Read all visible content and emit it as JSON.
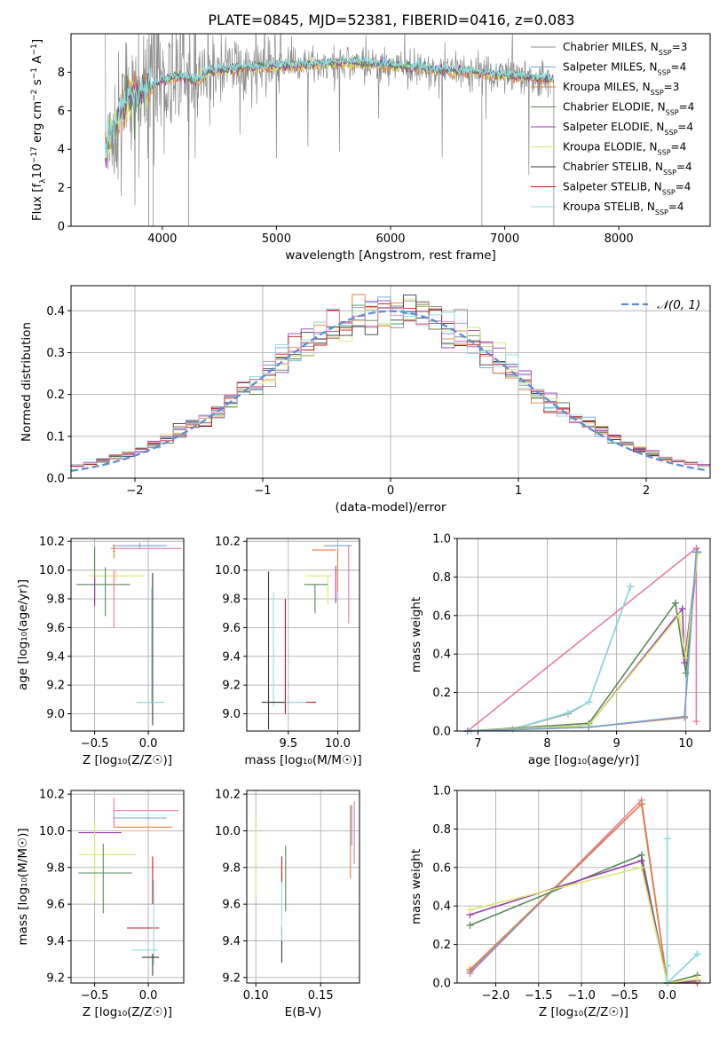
{
  "figure_title": "PLATE=0845, MJD=52381, FIBERID=0416, z=0.083",
  "colors": {
    "chabrier_miles": "#8c8c8c",
    "salpeter_miles": "#6fa3d8",
    "kroupa_miles": "#e8803a",
    "chabrier_elodie": "#5a8a5a",
    "salpeter_elodie": "#9a3fb0",
    "kroupa_elodie": "#dde870",
    "chabrier_stelib": "#3a3a3a",
    "salpeter_stelib": "#c41c1c",
    "kroupa_stelib": "#8edde0",
    "pink": "#e87aa8",
    "normal_curve": "#5b8ed8"
  },
  "models": [
    {
      "key": "chabrier_miles",
      "label": "Chabrier MILES, N",
      "sub": "SSP",
      "suffix": "=3"
    },
    {
      "key": "salpeter_miles",
      "label": "Salpeter MILES, N",
      "sub": "SSP",
      "suffix": "=4"
    },
    {
      "key": "kroupa_miles",
      "label": "Kroupa MILES, N",
      "sub": "SSP",
      "suffix": "=3"
    },
    {
      "key": "chabrier_elodie",
      "label": "Chabrier ELODIE, N",
      "sub": "SSP",
      "suffix": "=4"
    },
    {
      "key": "salpeter_elodie",
      "label": "Salpeter ELODIE, N",
      "sub": "SSP",
      "suffix": "=4"
    },
    {
      "key": "kroupa_elodie",
      "label": "Kroupa ELODIE, N",
      "sub": "SSP",
      "suffix": "=4"
    },
    {
      "key": "chabrier_stelib",
      "label": "Chabrier STELIB, N",
      "sub": "SSP",
      "suffix": "=4"
    },
    {
      "key": "salpeter_stelib",
      "label": "Salpeter STELIB, N",
      "sub": "SSP",
      "suffix": "=4"
    },
    {
      "key": "kroupa_stelib",
      "label": "Kroupa STELIB, N",
      "sub": "SSP",
      "suffix": "=4"
    }
  ],
  "chart_data": [
    {
      "id": "spectrum",
      "type": "line",
      "xlabel": "wavelength [Angstrom, rest frame]",
      "ylabel_parts": [
        "Flux [f",
        "λ",
        "10",
        "−17",
        " erg cm",
        "−2",
        " s",
        "−1",
        " A",
        "−1",
        "]"
      ],
      "xlim": [
        3200,
        8800
      ],
      "ylim": [
        0,
        10
      ],
      "xticks": [
        4000,
        5000,
        6000,
        7000,
        8000
      ],
      "yticks": [
        0,
        2,
        4,
        6,
        8
      ],
      "legend_position": "right",
      "model_curve": {
        "x": [
          3500,
          3600,
          3700,
          3800,
          3850,
          3900,
          4000,
          4100,
          4200,
          4300,
          4400,
          4500,
          4700,
          4900,
          5100,
          5300,
          5500,
          5700,
          5900,
          6100,
          6300,
          6500,
          6700,
          6900,
          7100,
          7300,
          7400
        ],
        "y": [
          4.0,
          5.3,
          6.6,
          6.9,
          7.0,
          7.2,
          7.6,
          7.7,
          7.8,
          7.5,
          8.0,
          8.1,
          8.2,
          8.3,
          8.3,
          8.4,
          8.5,
          8.5,
          8.4,
          8.3,
          8.2,
          8.1,
          8.0,
          7.9,
          7.8,
          7.7,
          7.6
        ]
      },
      "dips": [
        [
          3880,
          0
        ],
        [
          3920,
          0
        ],
        [
          4230,
          0
        ],
        [
          6800,
          0
        ],
        [
          7430,
          0
        ]
      ],
      "grid": false
    },
    {
      "id": "residual_hist",
      "type": "histogram",
      "xlabel": "(data-model)/error",
      "ylabel": "Normed distribution",
      "xlim": [
        -2.5,
        2.5
      ],
      "ylim": [
        0,
        0.46
      ],
      "xticks": [
        -2,
        -1,
        0,
        1,
        2
      ],
      "xtick_labels": [
        "−2",
        "−1",
        "0",
        "1",
        "2"
      ],
      "yticks": [
        0.0,
        0.1,
        0.2,
        0.3,
        0.4
      ],
      "ytick_labels": [
        "0.0",
        "0.1",
        "0.2",
        "0.3",
        "0.4"
      ],
      "bin_width": 0.1,
      "normal_label": "𝒩(0, 1)",
      "legend_position": "top-right",
      "grid": true
    },
    {
      "id": "age_vs_Z",
      "type": "errorbar",
      "xlabel": "Z [log₁₀(Z/Z☉)]",
      "ylabel": "age  [log₁₀(age/yr)]",
      "xlim": [
        -0.72,
        0.33
      ],
      "ylim": [
        8.88,
        10.22
      ],
      "xticks": [
        -0.5,
        0.0
      ],
      "xtick_labels": [
        "−0.5",
        "0.0"
      ],
      "yticks": [
        9.0,
        9.2,
        9.4,
        9.6,
        9.8,
        10.0,
        10.2
      ],
      "ytick_labels": [
        "9.0",
        "9.2",
        "9.4",
        "9.6",
        "9.8",
        "10.0",
        "10.2"
      ],
      "points": [
        {
          "c": "salpeter_miles",
          "x": -0.08,
          "xerr": 0.25,
          "y": 10.17,
          "yerr": 0.02
        },
        {
          "c": "pink",
          "x": -0.02,
          "xerr": 0.33,
          "y": 10.15,
          "yerr": 0.0
        },
        {
          "c": "kroupa_miles",
          "x": -0.32,
          "xerr": 0.01,
          "y": 10.13,
          "yerr": 0.05
        },
        {
          "c": "kroupa_elodie",
          "x": -0.3,
          "xerr": 0.26,
          "y": 9.96,
          "yerr": 0.04
        },
        {
          "c": "chabrier_elodie",
          "x": -0.5,
          "xerr": 0.0,
          "y": 9.96,
          "yerr": 0.2
        },
        {
          "c": "salpeter_elodie",
          "x": -0.5,
          "xerr": 0.0,
          "y": 9.85,
          "yerr": 0.1
        },
        {
          "c": "chabrier_elodie",
          "x": -0.42,
          "xerr": 0.25,
          "y": 9.9,
          "yerr": 0.0
        },
        {
          "c": "chabrier_elodie",
          "x": -0.4,
          "xerr": 0.0,
          "y": 9.85,
          "yerr": 0.17
        },
        {
          "c": "pink",
          "x": -0.32,
          "xerr": 0.0,
          "y": 9.8,
          "yerr": 0.2
        },
        {
          "c": "chabrier_stelib",
          "x": 0.04,
          "xerr": 0.0,
          "y": 9.45,
          "yerr": 0.53
        },
        {
          "c": "kroupa_stelib",
          "x": 0.03,
          "xerr": 0.0,
          "y": 9.47,
          "yerr": 0.4
        },
        {
          "c": "chabrier_elodie",
          "x": 0.02,
          "xerr": 0.12,
          "y": 9.08,
          "yerr": 0.0
        },
        {
          "c": "kroupa_stelib",
          "x": 0.02,
          "xerr": 0.13,
          "y": 9.08,
          "yerr": 0.0
        }
      ],
      "grid": true
    },
    {
      "id": "age_vs_mass",
      "type": "errorbar",
      "xlabel": "mass [log₁₀(M/M☉)]",
      "ylabel": "",
      "xlim": [
        9.08,
        10.22
      ],
      "ylim": [
        8.88,
        10.22
      ],
      "xticks": [
        9.5,
        10.0
      ],
      "xtick_labels": [
        "9.5",
        "10.0"
      ],
      "yticks": [
        9.0,
        9.2,
        9.4,
        9.6,
        9.8,
        10.0,
        10.2
      ],
      "ytick_labels": [
        "9.0",
        "9.2",
        "9.4",
        "9.6",
        "9.8",
        "10.0",
        "10.2"
      ],
      "points": [
        {
          "c": "salpeter_miles",
          "x": 10.0,
          "xerr": 0.14,
          "y": 10.17,
          "yerr": 0.0
        },
        {
          "c": "pink",
          "x": 10.11,
          "xerr": 0.0,
          "y": 9.9,
          "yerr": 0.27
        },
        {
          "c": "kroupa_miles",
          "x": 9.86,
          "xerr": 0.12,
          "y": 10.14,
          "yerr": 0.0
        },
        {
          "c": "kroupa_miles",
          "x": 10.0,
          "xerr": 0.0,
          "y": 10.0,
          "yerr": 0.15
        },
        {
          "c": "kroupa_elodie",
          "x": 9.81,
          "xerr": 0.13,
          "y": 9.96,
          "yerr": 0.0
        },
        {
          "c": "kroupa_elodie",
          "x": 9.9,
          "xerr": 0.0,
          "y": 9.86,
          "yerr": 0.1
        },
        {
          "c": "chabrier_elodie",
          "x": 9.78,
          "xerr": 0.12,
          "y": 9.9,
          "yerr": 0.0
        },
        {
          "c": "chabrier_elodie",
          "x": 9.77,
          "xerr": 0.0,
          "y": 9.8,
          "yerr": 0.1
        },
        {
          "c": "salpeter_elodie",
          "x": 9.98,
          "xerr": 0.0,
          "y": 9.9,
          "yerr": 0.13
        },
        {
          "c": "chabrier_stelib",
          "x": 9.3,
          "xerr": 0.0,
          "y": 9.44,
          "yerr": 0.55
        },
        {
          "c": "kroupa_stelib",
          "x": 9.35,
          "xerr": 0.0,
          "y": 9.45,
          "yerr": 0.4
        },
        {
          "c": "salpeter_stelib",
          "x": 9.47,
          "xerr": 0.0,
          "y": 9.4,
          "yerr": 0.4
        },
        {
          "c": "salpeter_stelib",
          "x": 9.6,
          "xerr": 0.18,
          "y": 9.08,
          "yerr": 0.0
        },
        {
          "c": "kroupa_stelib",
          "x": 9.48,
          "xerr": 0.2,
          "y": 9.08,
          "yerr": 0.0
        },
        {
          "c": "chabrier_stelib",
          "x": 9.35,
          "xerr": 0.12,
          "y": 9.08,
          "yerr": 0.0
        }
      ],
      "grid": true
    },
    {
      "id": "mass_weight_vs_age",
      "type": "line",
      "xlabel": "age  [log₁₀(age/yr)]",
      "ylabel": "mass weight",
      "xlim": [
        6.7,
        10.35
      ],
      "ylim": [
        0,
        1.0
      ],
      "xticks": [
        7,
        8,
        9,
        10
      ],
      "xtick_labels": [
        "7",
        "8",
        "9",
        "10"
      ],
      "yticks": [
        0.0,
        0.2,
        0.4,
        0.6,
        0.8,
        1.0
      ],
      "ytick_labels": [
        "0.0",
        "0.2",
        "0.4",
        "0.6",
        "0.8",
        "1.0"
      ],
      "series": [
        {
          "c": "pink",
          "x": [
            6.85,
            10.15,
            10.15
          ],
          "y": [
            0.0,
            0.95,
            0.05
          ]
        },
        {
          "c": "chabrier_miles",
          "x": [
            6.9,
            7.5,
            8.3,
            8.6,
            9.2
          ],
          "y": [
            0.0,
            0.01,
            0.09,
            0.15,
            0.75
          ]
        },
        {
          "c": "kroupa_stelib",
          "x": [
            6.9,
            7.5,
            8.3,
            8.6,
            9.2
          ],
          "y": [
            0.0,
            0.01,
            0.095,
            0.15,
            0.75
          ]
        },
        {
          "c": "chabrier_elodie",
          "x": [
            6.85,
            8.6,
            9.85,
            10.0,
            10.17
          ],
          "y": [
            0.0,
            0.04,
            0.665,
            0.3,
            0.93
          ]
        },
        {
          "c": "salpeter_elodie",
          "x": [
            6.85,
            8.6,
            9.95,
            9.98,
            10.17
          ],
          "y": [
            0.0,
            0.03,
            0.635,
            0.355,
            0.93
          ]
        },
        {
          "c": "kroupa_elodie",
          "x": [
            6.85,
            8.6,
            9.9,
            10.0,
            10.17
          ],
          "y": [
            0.0,
            0.03,
            0.6,
            0.38,
            0.92
          ]
        },
        {
          "c": "kroupa_miles",
          "x": [
            6.85,
            8.6,
            9.98,
            10.15
          ],
          "y": [
            0.0,
            0.02,
            0.07,
            0.93
          ]
        },
        {
          "c": "salpeter_miles",
          "x": [
            6.85,
            8.6,
            9.98,
            10.15
          ],
          "y": [
            0.0,
            0.02,
            0.075,
            0.93
          ]
        }
      ],
      "grid": true
    },
    {
      "id": "mass_vs_Z",
      "type": "errorbar",
      "xlabel": "Z [log₁₀(Z/Z☉)]",
      "ylabel": "mass [log₁₀(M/M☉)]",
      "xlim": [
        -0.72,
        0.33
      ],
      "ylim": [
        9.17,
        10.22
      ],
      "xticks": [
        -0.5,
        0.0
      ],
      "xtick_labels": [
        "−0.5",
        "0.0"
      ],
      "yticks": [
        9.2,
        9.4,
        9.6,
        9.8,
        10.0,
        10.2
      ],
      "ytick_labels": [
        "9.2",
        "9.4",
        "9.6",
        "9.8",
        "10.0",
        "10.2"
      ],
      "points": [
        {
          "c": "pink",
          "x": -0.02,
          "xerr": 0.3,
          "y": 10.11,
          "yerr": 0.0
        },
        {
          "c": "pink",
          "x": -0.32,
          "xerr": 0.0,
          "y": 10.1,
          "yerr": 0.08
        },
        {
          "c": "salpeter_miles",
          "x": -0.08,
          "xerr": 0.25,
          "y": 10.07,
          "yerr": 0.0
        },
        {
          "c": "kroupa_miles",
          "x": -0.05,
          "xerr": 0.27,
          "y": 10.02,
          "yerr": 0.0
        },
        {
          "c": "salpeter_elodie",
          "x": -0.45,
          "xerr": 0.2,
          "y": 9.99,
          "yerr": 0.0
        },
        {
          "c": "kroupa_elodie",
          "x": -0.5,
          "xerr": 0.0,
          "y": 9.84,
          "yerr": 0.22
        },
        {
          "c": "kroupa_elodie",
          "x": -0.38,
          "xerr": 0.27,
          "y": 9.87,
          "yerr": 0.0
        },
        {
          "c": "chabrier_elodie",
          "x": -0.42,
          "xerr": 0.0,
          "y": 9.74,
          "yerr": 0.19
        },
        {
          "c": "chabrier_elodie",
          "x": -0.4,
          "xerr": 0.25,
          "y": 9.77,
          "yerr": 0.0
        },
        {
          "c": "salpeter_stelib",
          "x": -0.05,
          "xerr": 0.15,
          "y": 9.47,
          "yerr": 0.0
        },
        {
          "c": "salpeter_stelib",
          "x": 0.04,
          "xerr": 0.0,
          "y": 9.73,
          "yerr": 0.13
        },
        {
          "c": "kroupa_stelib",
          "x": 0.05,
          "xerr": 0.0,
          "y": 9.5,
          "yerr": 0.23
        },
        {
          "c": "kroupa_stelib",
          "x": -0.03,
          "xerr": 0.12,
          "y": 9.35,
          "yerr": 0.0
        },
        {
          "c": "chabrier_stelib",
          "x": 0.02,
          "xerr": 0.08,
          "y": 9.31,
          "yerr": 0.0
        },
        {
          "c": "chabrier_stelib",
          "x": 0.04,
          "xerr": 0.0,
          "y": 9.27,
          "yerr": 0.06
        }
      ],
      "grid": true
    },
    {
      "id": "mass_vs_ebv",
      "type": "errorbar",
      "xlabel": "E(B-V)",
      "ylabel": "",
      "xlim": [
        0.093,
        0.18
      ],
      "ylim": [
        9.17,
        10.22
      ],
      "xticks": [
        0.1,
        0.15
      ],
      "xtick_labels": [
        "0.10",
        "0.15"
      ],
      "yticks": [
        9.2,
        9.4,
        9.6,
        9.8,
        10.0,
        10.2
      ],
      "ytick_labels": [
        "9.2",
        "9.4",
        "9.6",
        "9.8",
        "10.0",
        "10.2"
      ],
      "points": [
        {
          "c": "kroupa_elodie",
          "x": 0.1,
          "xerr": 0.0,
          "y": 9.85,
          "yerr": 0.22
        },
        {
          "c": "chabrier_stelib",
          "x": 0.12,
          "xerr": 0.0,
          "y": 9.38,
          "yerr": 0.1
        },
        {
          "c": "kroupa_stelib",
          "x": 0.12,
          "xerr": 0.0,
          "y": 9.56,
          "yerr": 0.16
        },
        {
          "c": "salpeter_stelib",
          "x": 0.12,
          "xerr": 0.0,
          "y": 9.79,
          "yerr": 0.07
        },
        {
          "c": "chabrier_elodie",
          "x": 0.123,
          "xerr": 0.0,
          "y": 9.74,
          "yerr": 0.18
        },
        {
          "c": "kroupa_miles",
          "x": 0.173,
          "xerr": 0.0,
          "y": 9.94,
          "yerr": 0.2
        },
        {
          "c": "salpeter_miles",
          "x": 0.174,
          "xerr": 0.0,
          "y": 10.03,
          "yerr": 0.11
        },
        {
          "c": "pink",
          "x": 0.176,
          "xerr": 0.0,
          "y": 9.99,
          "yerr": 0.17
        }
      ],
      "grid": true
    },
    {
      "id": "mass_weight_vs_Z",
      "type": "line",
      "xlabel": "Z [log₁₀(Z/Z☉)]",
      "ylabel": "mass weight",
      "xlim": [
        -2.45,
        0.5
      ],
      "ylim": [
        0,
        1.0
      ],
      "xticks": [
        -2.0,
        -1.5,
        -1.0,
        -0.5,
        0.0
      ],
      "xtick_labels": [
        "−2.0",
        "−1.5",
        "−1.0",
        "−0.5",
        "0.0"
      ],
      "yticks": [
        0.0,
        0.2,
        0.4,
        0.6,
        0.8,
        1.0
      ],
      "ytick_labels": [
        "0.0",
        "0.2",
        "0.4",
        "0.6",
        "0.8",
        "1.0"
      ],
      "series": [
        {
          "c": "pink",
          "x": [
            -2.3,
            -0.3,
            0.0
          ],
          "y": [
            0.05,
            0.95,
            0.0
          ]
        },
        {
          "c": "salpeter_miles",
          "x": [
            -2.3,
            -0.3,
            0.0,
            0.35
          ],
          "y": [
            0.06,
            0.93,
            0.0,
            0.0
          ]
        },
        {
          "c": "kroupa_miles",
          "x": [
            -2.3,
            -0.3,
            0.0,
            0.35
          ],
          "y": [
            0.07,
            0.93,
            0.0,
            0.0
          ]
        },
        {
          "c": "chabrier_elodie",
          "x": [
            -2.3,
            -0.3,
            0.0,
            0.35
          ],
          "y": [
            0.3,
            0.665,
            0.0,
            0.04
          ]
        },
        {
          "c": "salpeter_elodie",
          "x": [
            -2.3,
            -0.3,
            0.0,
            0.35
          ],
          "y": [
            0.355,
            0.635,
            0.0,
            0.01
          ]
        },
        {
          "c": "kroupa_elodie",
          "x": [
            -2.3,
            -0.3,
            0.0,
            0.35
          ],
          "y": [
            0.38,
            0.6,
            0.0,
            0.02
          ]
        },
        {
          "c": "chabrier_miles",
          "x": [
            0.0,
            0.0,
            0.0,
            0.35
          ],
          "y": [
            0.75,
            0.09,
            0.0,
            0.15
          ]
        },
        {
          "c": "kroupa_stelib",
          "x": [
            0.0,
            0.0,
            0.0,
            0.35
          ],
          "y": [
            0.75,
            0.09,
            0.0,
            0.15
          ]
        }
      ],
      "grid": true
    }
  ]
}
